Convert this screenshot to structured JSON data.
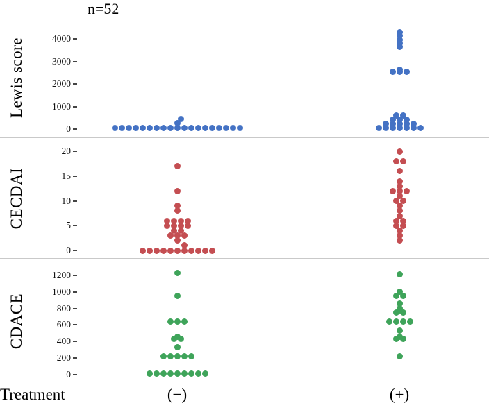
{
  "chart_data": {
    "type": "scatter",
    "subtype": "stacked-dot-plot",
    "annotation": "n=52",
    "xlabel": "Treatment",
    "legend": "none",
    "grid": false,
    "groups": [
      {
        "id": "neg",
        "label": "(−)"
      },
      {
        "id": "pos",
        "label": "(+)"
      }
    ],
    "panels": [
      {
        "ylabel": "Lewis score",
        "color": "#4472C4",
        "ylim": [
          0,
          4500
        ],
        "yticks": [
          0,
          1000,
          2000,
          3000,
          4000
        ],
        "points": {
          "neg": [
            [
              60,
              -9
            ],
            [
              60,
              -8
            ],
            [
              60,
              -7
            ],
            [
              60,
              -6
            ],
            [
              60,
              -5
            ],
            [
              60,
              -4
            ],
            [
              60,
              -3
            ],
            [
              60,
              -2
            ],
            [
              60,
              -1
            ],
            [
              60,
              0
            ],
            [
              60,
              1
            ],
            [
              60,
              2
            ],
            [
              60,
              3
            ],
            [
              60,
              4
            ],
            [
              60,
              5
            ],
            [
              60,
              6
            ],
            [
              60,
              7
            ],
            [
              60,
              8
            ],
            [
              60,
              9
            ],
            [
              250,
              0
            ],
            [
              450,
              0.5
            ]
          ],
          "pos": [
            [
              4300,
              0
            ],
            [
              4150,
              0
            ],
            [
              3950,
              0
            ],
            [
              3800,
              0
            ],
            [
              3650,
              0
            ],
            [
              2650,
              0
            ],
            [
              2550,
              -1
            ],
            [
              2550,
              0
            ],
            [
              2550,
              1
            ],
            [
              600,
              -0.5
            ],
            [
              600,
              0.5
            ],
            [
              420,
              -1
            ],
            [
              420,
              0
            ],
            [
              420,
              1
            ],
            [
              230,
              -2
            ],
            [
              230,
              -1
            ],
            [
              230,
              0
            ],
            [
              230,
              1
            ],
            [
              230,
              2
            ],
            [
              60,
              -3
            ],
            [
              60,
              -2
            ],
            [
              60,
              -1
            ],
            [
              60,
              0
            ],
            [
              60,
              1
            ],
            [
              60,
              2
            ],
            [
              60,
              3
            ]
          ]
        }
      },
      {
        "ylabel": "CECDAI",
        "color": "#C44E52",
        "ylim": [
          0,
          21
        ],
        "yticks": [
          0,
          5,
          10,
          15,
          20
        ],
        "points": {
          "neg": [
            [
              0,
              -5
            ],
            [
              0,
              -4
            ],
            [
              0,
              -3
            ],
            [
              0,
              -2
            ],
            [
              0,
              -1
            ],
            [
              0,
              0
            ],
            [
              0,
              1
            ],
            [
              0,
              2
            ],
            [
              0,
              3
            ],
            [
              0,
              4
            ],
            [
              0,
              5
            ],
            [
              1,
              1
            ],
            [
              2,
              0
            ],
            [
              3,
              -1
            ],
            [
              3,
              0
            ],
            [
              3,
              1
            ],
            [
              4,
              -0.5
            ],
            [
              4,
              0.5
            ],
            [
              5,
              -1.5
            ],
            [
              5,
              -0.5
            ],
            [
              5,
              0.5
            ],
            [
              5,
              1.5
            ],
            [
              6,
              -1.5
            ],
            [
              6,
              -0.5
            ],
            [
              6,
              0.5
            ],
            [
              6,
              1.5
            ],
            [
              8,
              0
            ],
            [
              9,
              0
            ],
            [
              12,
              0
            ],
            [
              17,
              0
            ]
          ],
          "pos": [
            [
              2,
              0
            ],
            [
              3,
              0
            ],
            [
              4,
              0
            ],
            [
              5,
              -0.5
            ],
            [
              5,
              0.5
            ],
            [
              6,
              -0.5
            ],
            [
              6,
              0.5
            ],
            [
              7,
              0
            ],
            [
              8,
              0
            ],
            [
              9,
              0
            ],
            [
              10,
              -0.5
            ],
            [
              10,
              0.5
            ],
            [
              11,
              0
            ],
            [
              12,
              -1
            ],
            [
              12,
              0
            ],
            [
              12,
              1
            ],
            [
              13,
              0
            ],
            [
              14,
              0
            ],
            [
              16,
              0
            ],
            [
              18,
              -0.5
            ],
            [
              18,
              0.5
            ],
            [
              20,
              0
            ]
          ]
        }
      },
      {
        "ylabel": "CDACE",
        "color": "#3FA45A",
        "ylim": [
          0,
          1300
        ],
        "yticks": [
          0,
          200,
          400,
          600,
          800,
          1000,
          1200
        ],
        "points": {
          "neg": [
            [
              10,
              -4
            ],
            [
              10,
              -3
            ],
            [
              10,
              -2
            ],
            [
              10,
              -1
            ],
            [
              10,
              0
            ],
            [
              10,
              1
            ],
            [
              10,
              2
            ],
            [
              10,
              3
            ],
            [
              10,
              4
            ],
            [
              220,
              -2
            ],
            [
              220,
              -1
            ],
            [
              220,
              0
            ],
            [
              220,
              1
            ],
            [
              220,
              2
            ],
            [
              330,
              0
            ],
            [
              430,
              -0.5
            ],
            [
              430,
              0.5
            ],
            [
              460,
              0
            ],
            [
              640,
              -1
            ],
            [
              640,
              0
            ],
            [
              640,
              1
            ],
            [
              950,
              0
            ],
            [
              1230,
              0
            ]
          ],
          "pos": [
            [
              220,
              0
            ],
            [
              430,
              -0.5
            ],
            [
              430,
              0.5
            ],
            [
              460,
              0
            ],
            [
              530,
              0
            ],
            [
              640,
              -1.5
            ],
            [
              640,
              -0.5
            ],
            [
              640,
              0.5
            ],
            [
              640,
              1.5
            ],
            [
              750,
              -0.5
            ],
            [
              750,
              0.5
            ],
            [
              780,
              0
            ],
            [
              800,
              0
            ],
            [
              860,
              0
            ],
            [
              950,
              -0.5
            ],
            [
              950,
              0.5
            ],
            [
              1000,
              0
            ],
            [
              1210,
              0
            ]
          ]
        }
      }
    ]
  }
}
